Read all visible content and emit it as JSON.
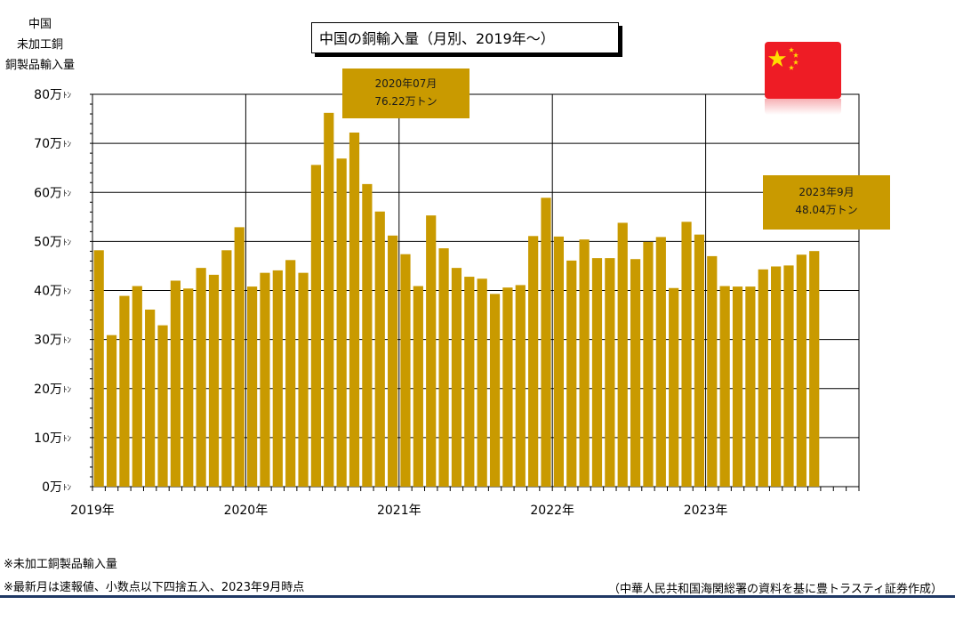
{
  "y_axis_caption": [
    "中国",
    "未加工銅",
    "銅製品輸入量"
  ],
  "title": "中国の銅輸入量（月別、2019年～）",
  "callouts": [
    {
      "line1": "2020年07月",
      "line2": "76.22万トン"
    },
    {
      "line1": "2023年9月",
      "line2": "48.04万トン"
    }
  ],
  "notes": [
    "※未加工銅製品輸入量",
    "※最新月は速報値、小数点以下四捨五入、2023年9月時点"
  ],
  "source": "（中華人民共和国海関総署の資料を基に豊トラスティ証券作成）",
  "colors": {
    "bar": "#c99a00",
    "callout": "#c99a00",
    "flag": "#ee1c25",
    "rule": "#1f3864"
  },
  "flag_icon": "china-flag-icon",
  "chart_data": {
    "type": "bar",
    "ylim": [
      0,
      80
    ],
    "y_unit": "万トン",
    "y_ticks": [
      {
        "value": 0,
        "label": "0万"
      },
      {
        "value": 10,
        "label": "10万"
      },
      {
        "value": 20,
        "label": "20万"
      },
      {
        "value": 30,
        "label": "30万"
      },
      {
        "value": 40,
        "label": "40万"
      },
      {
        "value": 50,
        "label": "50万"
      },
      {
        "value": 60,
        "label": "60万"
      },
      {
        "value": 70,
        "label": "70万"
      },
      {
        "value": 80,
        "label": "80万"
      }
    ],
    "y_tick_suffix": "ﾄﾝ",
    "x_labels": [
      "2019年",
      "2020年",
      "2021年",
      "2022年",
      "2023年"
    ],
    "grid": true,
    "values": [
      48.2,
      30.9,
      38.9,
      40.9,
      36.1,
      32.9,
      42.0,
      40.4,
      44.6,
      43.2,
      48.2,
      52.9,
      40.8,
      43.6,
      44.1,
      46.2,
      43.6,
      65.6,
      76.22,
      66.9,
      72.2,
      61.7,
      56.1,
      51.2,
      47.4,
      40.9,
      55.3,
      48.6,
      44.6,
      42.8,
      42.4,
      39.3,
      40.6,
      41.1,
      51.1,
      58.9,
      51.0,
      46.1,
      50.4,
      46.6,
      46.6,
      53.8,
      46.4,
      49.9,
      50.9,
      40.5,
      54.0,
      51.4,
      47.0,
      40.9,
      40.8,
      40.8,
      44.3,
      44.9,
      45.1,
      47.3,
      48.04
    ],
    "total_months": 60
  }
}
